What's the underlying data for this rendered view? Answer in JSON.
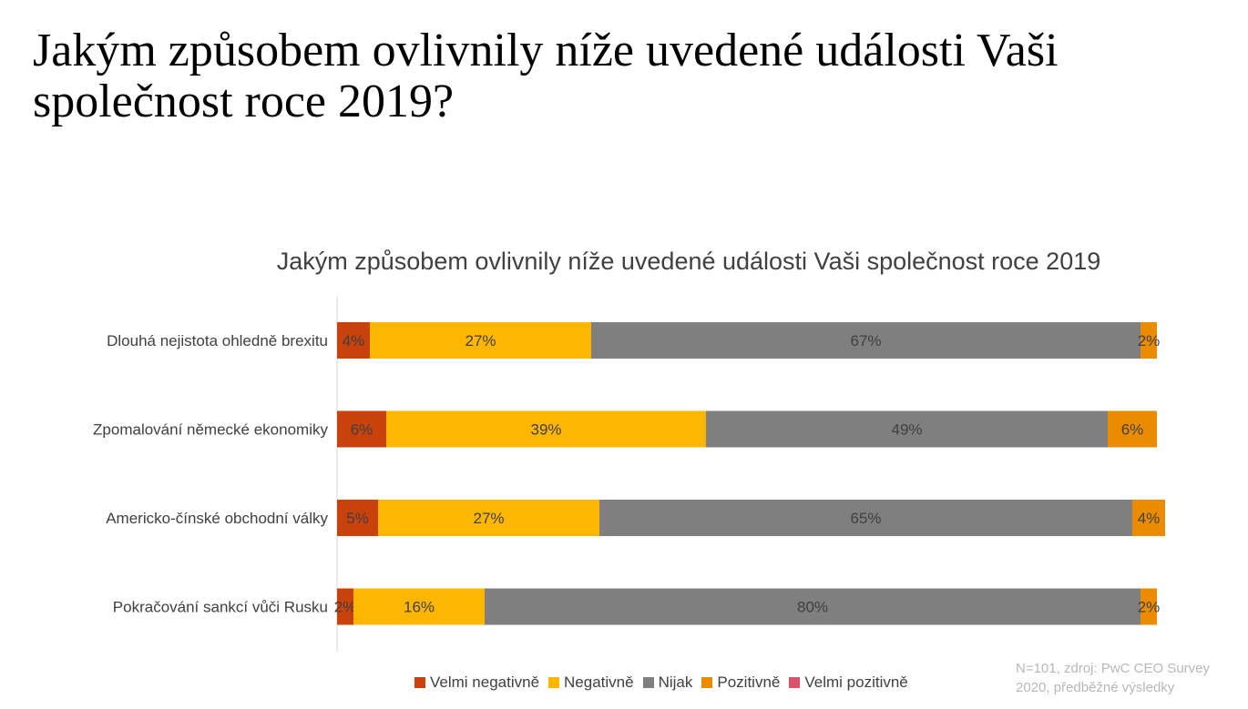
{
  "slide": {
    "title": "Jakým způsobem ovlivnily níže uvedené události Vaši společnost roce 2019?",
    "source_note": "N=101, zdroj: PwC CEO Survey 2020, předběžné výsledky"
  },
  "colors": {
    "velmi_negativne": "#C9410B",
    "negativne": "#FFB600",
    "nijak": "#7F7F7F",
    "pozitivne": "#EB8C00",
    "velmi_pozitivne": "#DB536A",
    "label_text": "#404040",
    "axis": "#D9D9D9"
  },
  "chart_data": {
    "type": "bar",
    "orientation": "horizontal",
    "stacked": true,
    "title": "Jakým způsobem ovlivnily níže uvedené události Vaši společnost roce 2019",
    "xlim": [
      0,
      100
    ],
    "grid": false,
    "legend_position": "bottom",
    "categories": [
      "Dlouhá nejistota ohledně brexitu",
      "Zpomalování německé ekonomiky",
      "Americko-čínské obchodní války",
      "Pokračování sankcí vůči Rusku"
    ],
    "series": [
      {
        "name": "Velmi negativně",
        "color": "#C9410B",
        "values": [
          4,
          6,
          5,
          2
        ],
        "labels": [
          "4%",
          "6%",
          "5%",
          "2%"
        ]
      },
      {
        "name": "Negativně",
        "color": "#FFB600",
        "values": [
          27,
          39,
          27,
          16
        ],
        "labels": [
          "27%",
          "39%",
          "27%",
          "16%"
        ]
      },
      {
        "name": "Nijak",
        "color": "#7F7F7F",
        "values": [
          67,
          49,
          65,
          80
        ],
        "labels": [
          "67%",
          "49%",
          "65%",
          "80%"
        ]
      },
      {
        "name": "Pozitivně",
        "color": "#EB8C00",
        "values": [
          2,
          6,
          4,
          2
        ],
        "labels": [
          "2%",
          "6%",
          "4%",
          "2%"
        ]
      },
      {
        "name": "Velmi pozitivně",
        "color": "#DB536A",
        "values": [
          0,
          0,
          0,
          0
        ],
        "labels": [
          "",
          "",
          "",
          ""
        ]
      }
    ]
  }
}
